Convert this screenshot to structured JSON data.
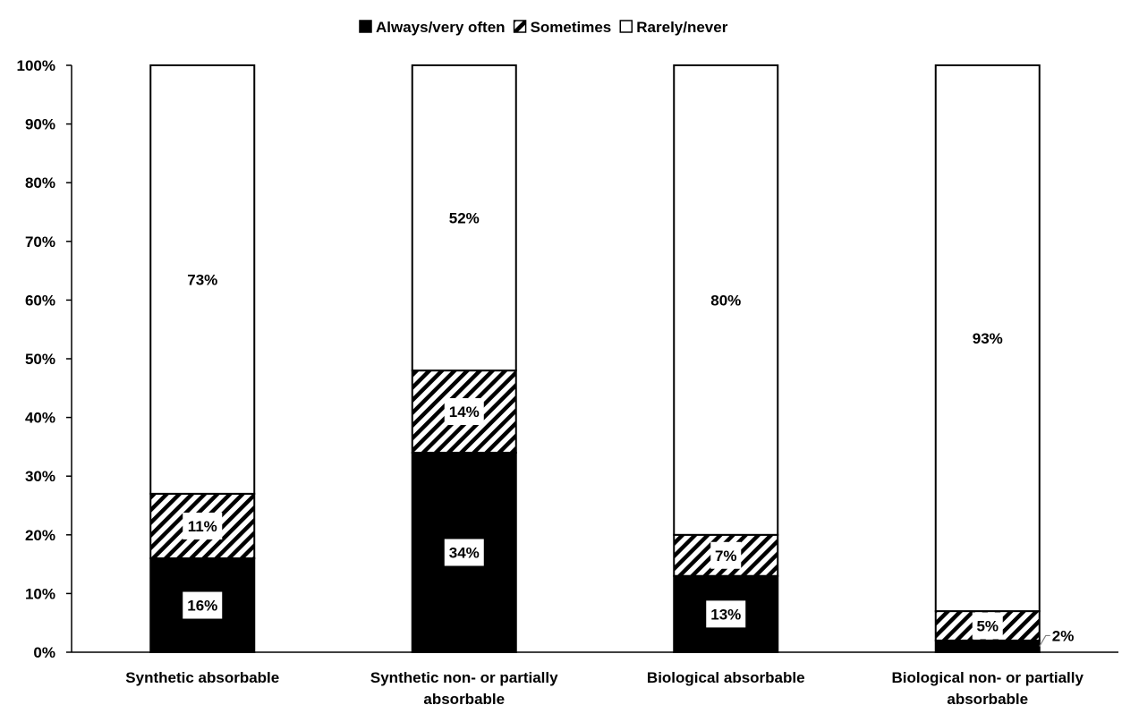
{
  "chart_data": {
    "type": "bar",
    "stacked": true,
    "categories": [
      [
        "Synthetic absorbable"
      ],
      [
        "Synthetic non- or partially",
        "absorbable"
      ],
      [
        "Biological absorbable"
      ],
      [
        "Biological non- or partially",
        "absorbable"
      ]
    ],
    "series": [
      {
        "name": "Always/very often",
        "values": [
          16,
          34,
          13,
          2
        ],
        "labels": [
          "16%",
          "34%",
          "13%",
          "2%"
        ],
        "fill": "#000000"
      },
      {
        "name": "Sometimes",
        "values": [
          11,
          14,
          7,
          5
        ],
        "labels": [
          "11%",
          "14%",
          "7%",
          "5%"
        ],
        "fill": "hatch"
      },
      {
        "name": "Rarely/never",
        "values": [
          73,
          52,
          80,
          93
        ],
        "labels": [
          "73%",
          "52%",
          "80%",
          "93%"
        ],
        "fill": "#ffffff"
      }
    ],
    "ylim": [
      0,
      100
    ],
    "yticks": [
      "0%",
      "10%",
      "20%",
      "30%",
      "40%",
      "50%",
      "60%",
      "70%",
      "80%",
      "90%",
      "100%"
    ],
    "legend": "top",
    "grid": false
  }
}
